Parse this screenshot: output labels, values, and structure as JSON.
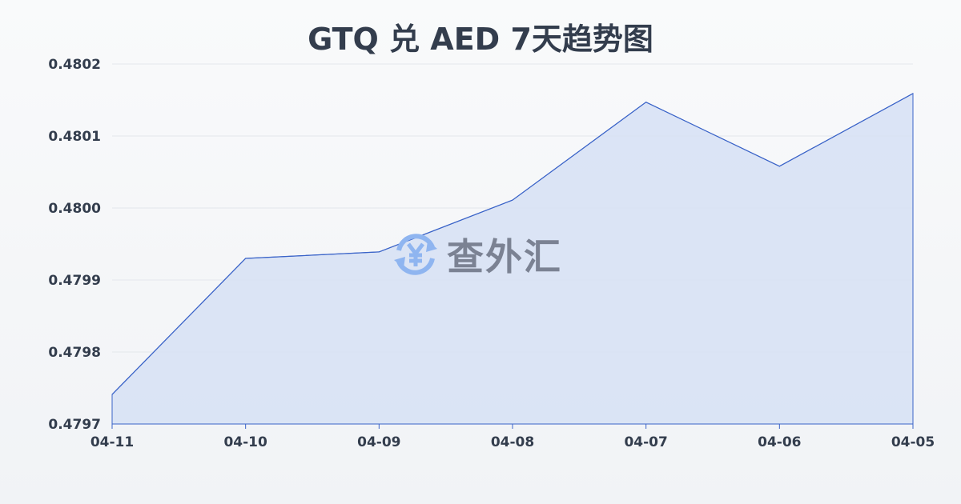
{
  "chart_data": {
    "type": "area",
    "title": "GTQ 兑 AED 7天趋势图",
    "categories": [
      "04-11",
      "04-10",
      "04-09",
      "04-08",
      "04-07",
      "04-06",
      "04-05"
    ],
    "series": [
      {
        "values": [
          0.479741,
          0.47993,
          0.479939,
          0.480011,
          0.480147,
          0.480058,
          0.480159
        ]
      }
    ],
    "yticks": [
      "0.4797",
      "0.4798",
      "0.4799",
      "0.4800",
      "0.4801",
      "0.4802"
    ],
    "ylim": [
      0.4797,
      0.4802
    ],
    "grid": true,
    "colors": {
      "line": "#3a63c8",
      "fill": "#d6e0f5"
    }
  },
  "watermark": {
    "text": "查外汇",
    "icon": "yen-exchange-icon"
  }
}
